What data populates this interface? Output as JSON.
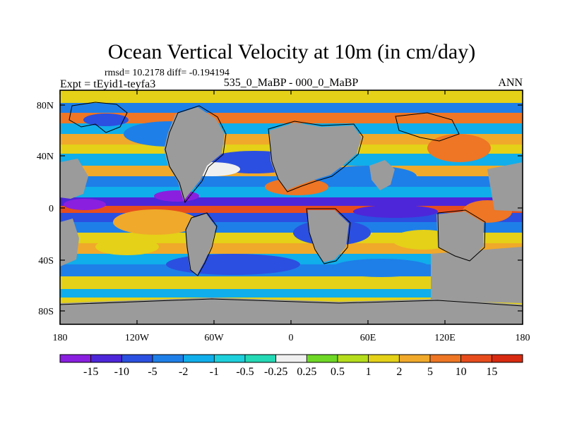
{
  "chart_data": {
    "type": "heatmap",
    "title": "Ocean Vertical Velocity at 10m (in cm/day)",
    "stats_line": "rmsd= 10.2178 diff= -0.194194",
    "experiment_label": "Expt = tEyid1-teyfa3",
    "center_subtitle": "535_0_MaBP - 000_0_MaBP",
    "season_label": "ANN",
    "x_ticks": [
      "180",
      "120W",
      "60W",
      "0",
      "60E",
      "120E",
      "180"
    ],
    "y_ticks": [
      "80N",
      "40N",
      "0",
      "40S",
      "80S"
    ],
    "colorbar": {
      "labels": [
        "-15",
        "-10",
        "-5",
        "-2",
        "-1",
        "-0.5",
        "-0.25",
        "0.25",
        "0.5",
        "1",
        "2",
        "5",
        "10",
        "15"
      ],
      "colors": [
        "#8a1fe0",
        "#4d26d9",
        "#2b4fe0",
        "#1e7fe8",
        "#10aeea",
        "#1dd0dc",
        "#24d9b5",
        "#f0f0f0",
        "#6fd826",
        "#b5dd1c",
        "#e4d118",
        "#f0a92a",
        "#ee7624",
        "#e74d1c",
        "#d82a10"
      ]
    },
    "land_color": "#9b9b9b"
  }
}
